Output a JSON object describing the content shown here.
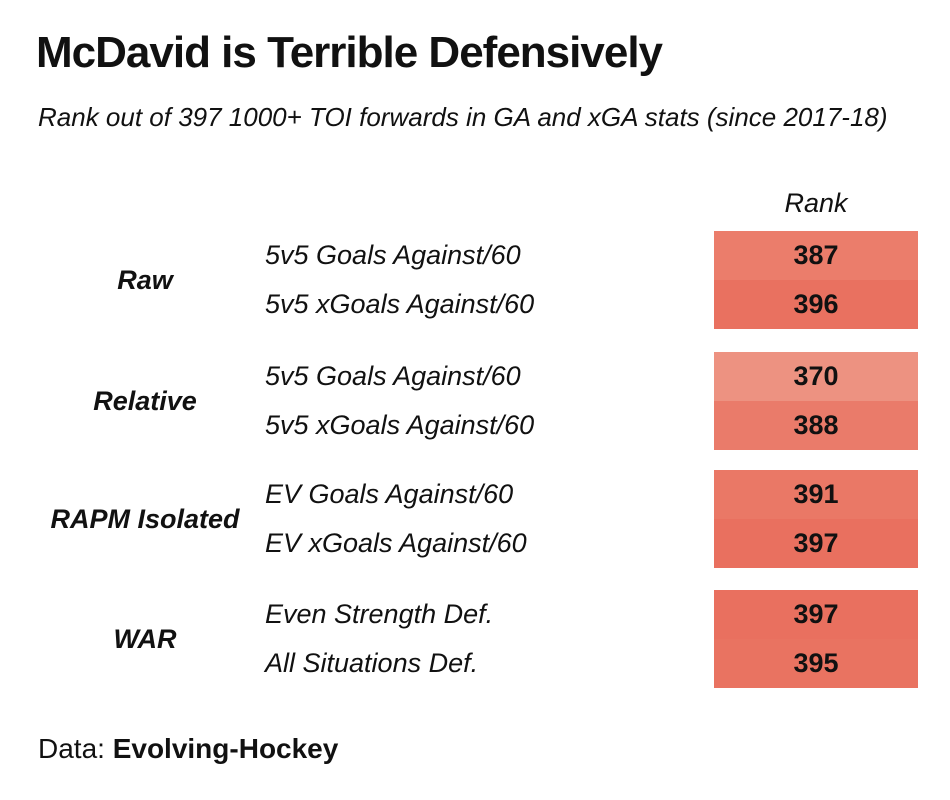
{
  "chart_data": {
    "type": "table",
    "title": "McDavid is Terrible Defensively",
    "subtitle": "Rank out of 397 1000+ TOI forwards in GA and xGA stats (since 2017-18)",
    "value_column": "Rank",
    "max_rank": 397,
    "colors": {
      "low": "#f2b8a6",
      "high": "#e9705f"
    },
    "groups": [
      {
        "label": "Raw",
        "rows": [
          {
            "metric": "5v5 Goals Against/60",
            "rank": 387
          },
          {
            "metric": "5v5 xGoals Against/60",
            "rank": 396
          }
        ]
      },
      {
        "label": "Relative",
        "rows": [
          {
            "metric": "5v5 Goals Against/60",
            "rank": 370
          },
          {
            "metric": "5v5 xGoals Against/60",
            "rank": 388
          }
        ]
      },
      {
        "label": "RAPM Isolated",
        "rows": [
          {
            "metric": "EV Goals Against/60",
            "rank": 391
          },
          {
            "metric": "EV xGoals Against/60",
            "rank": 397
          }
        ]
      },
      {
        "label": "WAR",
        "rows": [
          {
            "metric": "Even Strength Def.",
            "rank": 397
          },
          {
            "metric": "All Situations Def.",
            "rank": 395
          }
        ]
      }
    ]
  },
  "footer": {
    "prefix": "Data: ",
    "source": "Evolving-Hockey"
  }
}
